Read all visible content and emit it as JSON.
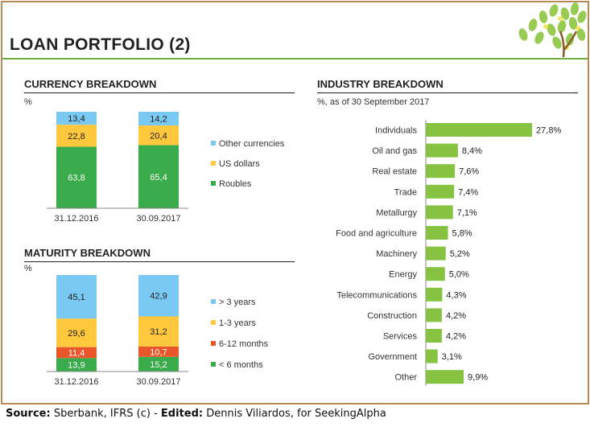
{
  "page": {
    "title": "LOAN  PORTFOLIO (2)"
  },
  "colors": {
    "roubles": "#3aab4a",
    "us_dollars": "#ffc83d",
    "other_currencies": "#79c9f2",
    "lt6m": "#3aab4a",
    "m6_12": "#e8562a",
    "y1_3": "#ffc83d",
    "gt3y": "#79c9f2",
    "industry_bar": "#86c341",
    "accent": "#6fae3a"
  },
  "currency": {
    "title": "CURRENCY BREAKDOWN",
    "unit": "%"
  },
  "maturity": {
    "title": "MATURITY BREAKDOWN",
    "unit": "%"
  },
  "industry": {
    "title": "INDUSTRY BREAKDOWN",
    "subtitle": "%, as of 30 September 2017"
  },
  "source": {
    "label": "Source:",
    "text": "Sberbank, IFRS (c) -",
    "edited_label": "Edited:",
    "edited_text": "Dennis Viliardos, for SeekingAlpha"
  },
  "chart_data": [
    {
      "type": "bar",
      "stacked": true,
      "title": "CURRENCY BREAKDOWN",
      "ylabel": "%",
      "categories": [
        "31.12.2016",
        "30.09.2017"
      ],
      "series": [
        {
          "name": "Roubles",
          "values": [
            63.8,
            65.4
          ],
          "labels": [
            "63,8",
            "65,4"
          ]
        },
        {
          "name": "US dollars",
          "values": [
            22.8,
            20.4
          ],
          "labels": [
            "22,8",
            "20,4"
          ]
        },
        {
          "name": "Other currencies",
          "values": [
            13.4,
            14.2
          ],
          "labels": [
            "13,4",
            "14,2"
          ]
        }
      ]
    },
    {
      "type": "bar",
      "stacked": true,
      "title": "MATURITY BREAKDOWN",
      "ylabel": "%",
      "categories": [
        "31.12.2016",
        "30.09.2017"
      ],
      "series": [
        {
          "name": "< 6 months",
          "values": [
            13.9,
            15.2
          ],
          "labels": [
            "13,9",
            "15,2"
          ]
        },
        {
          "name": "6-12 months",
          "values": [
            11.4,
            10.7
          ],
          "labels": [
            "11,4",
            "10,7"
          ]
        },
        {
          "name": "1-3 years",
          "values": [
            29.6,
            31.2
          ],
          "labels": [
            "29,6",
            "31,2"
          ]
        },
        {
          "name": "> 3 years",
          "values": [
            45.1,
            42.9
          ],
          "labels": [
            "45,1",
            "42,9"
          ]
        }
      ]
    },
    {
      "type": "bar",
      "orientation": "horizontal",
      "title": "INDUSTRY BREAKDOWN",
      "subtitle": "%, as of 30 September 2017",
      "categories": [
        "Individuals",
        "Oil and gas",
        "Real estate",
        "Trade",
        "Metallurgy",
        "Food and agriculture",
        "Machinery",
        "Energy",
        "Telecommunications",
        "Construction",
        "Services",
        "Government",
        "Other"
      ],
      "values": [
        27.8,
        8.4,
        7.6,
        7.4,
        7.1,
        5.8,
        5.2,
        5.0,
        4.3,
        4.2,
        4.2,
        3.1,
        9.9
      ],
      "labels": [
        "27,8%",
        "8,4%",
        "7,6%",
        "7,4%",
        "7,1%",
        "5,8%",
        "5,2%",
        "5,0%",
        "4,3%",
        "4,2%",
        "4,2%",
        "3,1%",
        "9,9%"
      ]
    }
  ]
}
